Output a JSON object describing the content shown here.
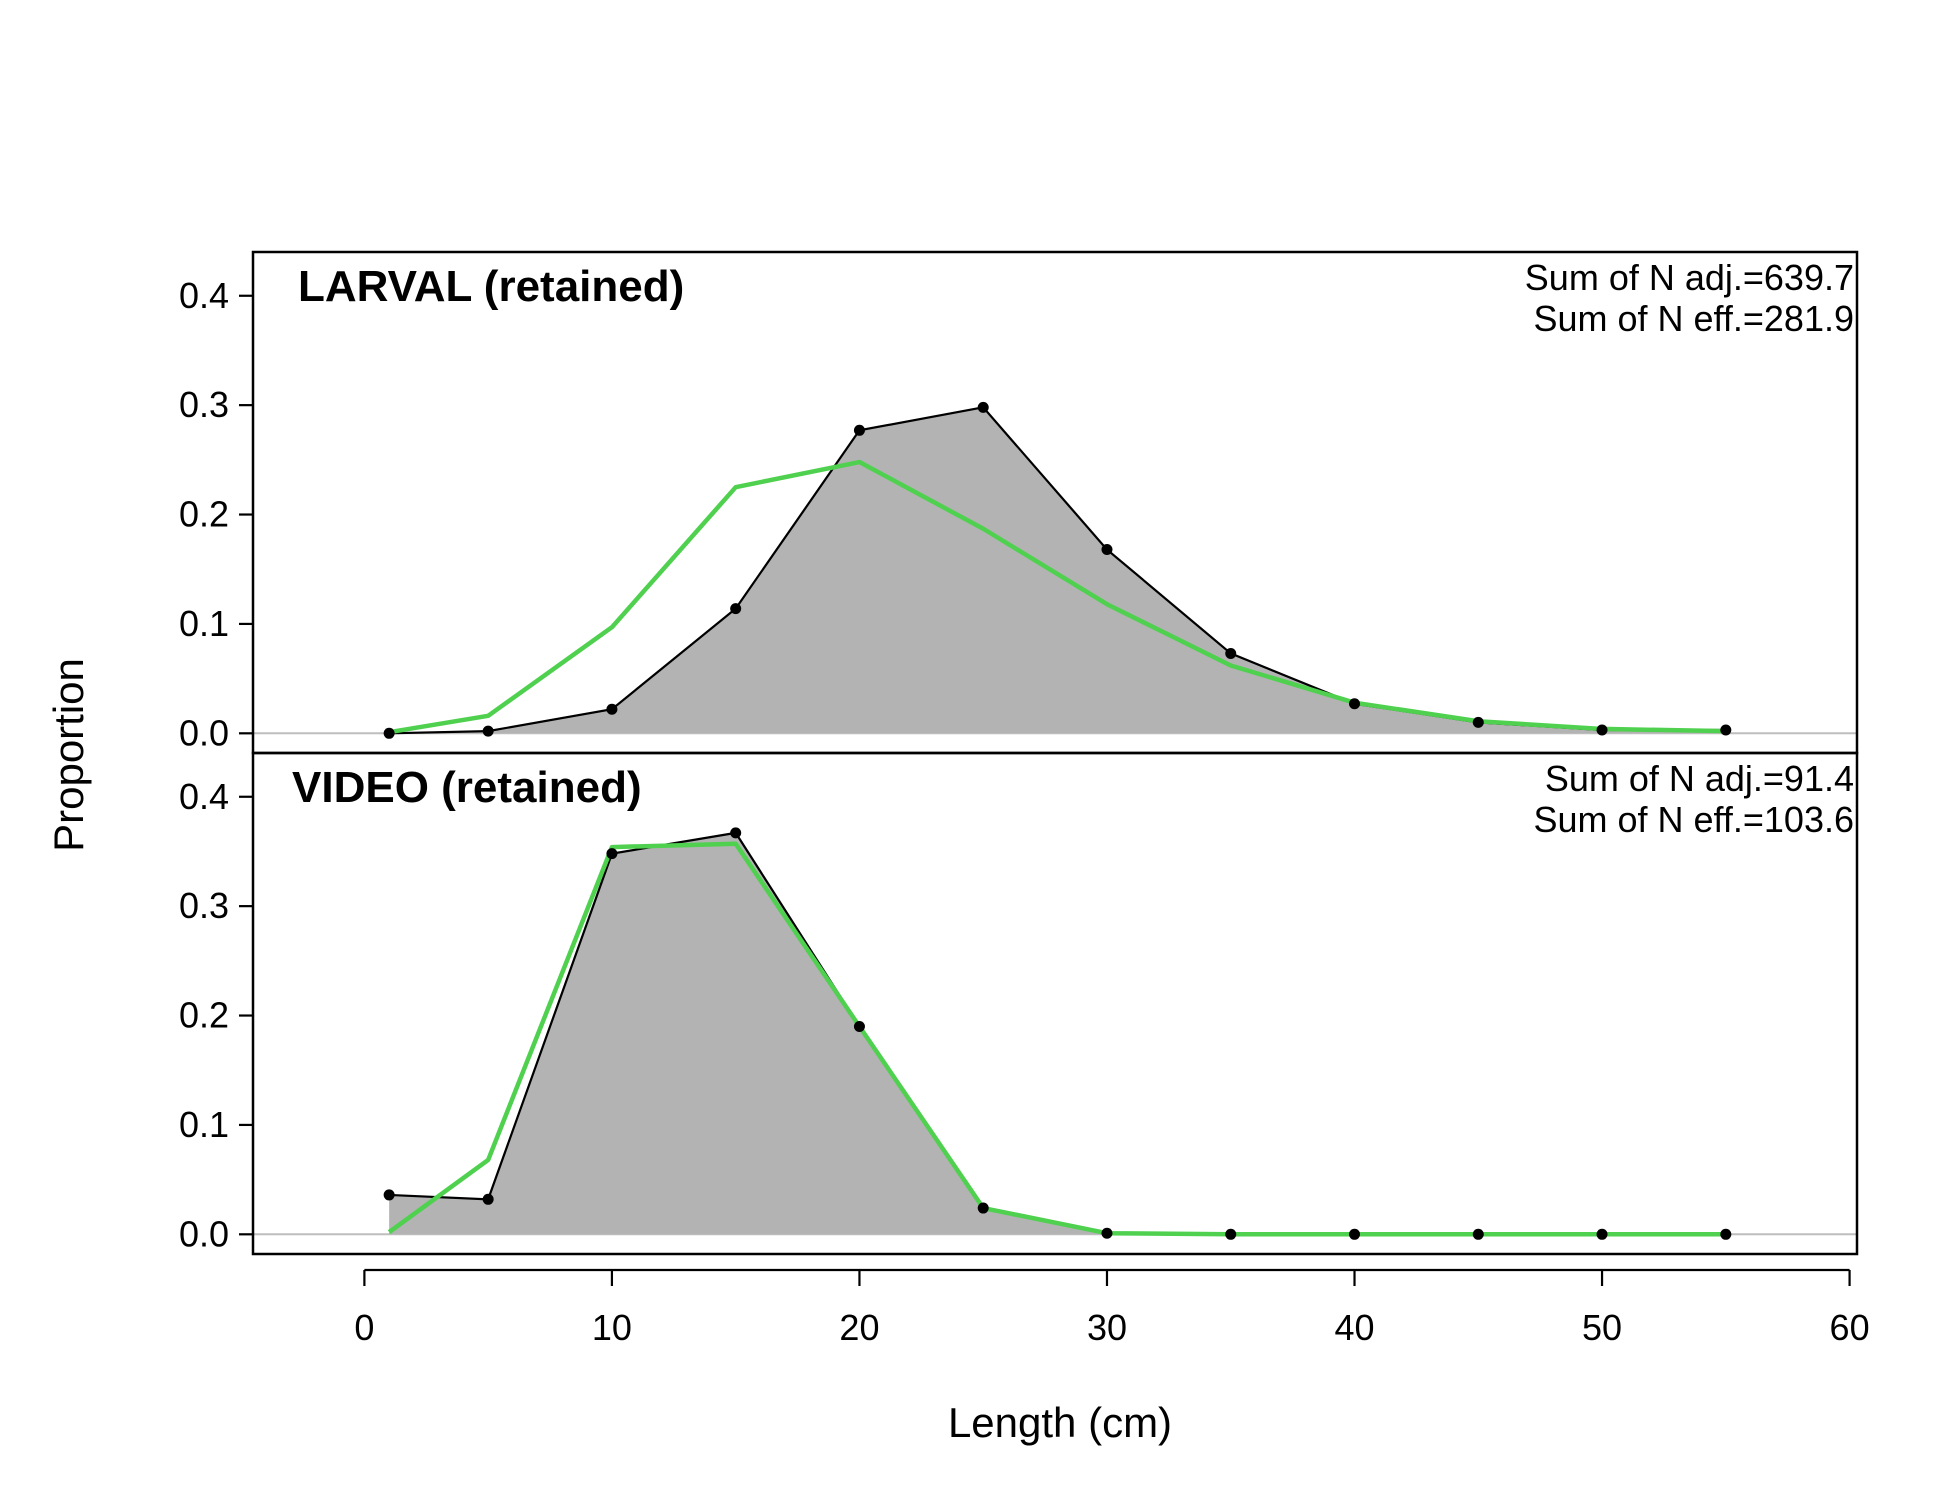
{
  "chart_data": {
    "type": "area",
    "xlabel": "Length (cm)",
    "ylabel": "Proportion",
    "xlim": [
      -4.5,
      60.3
    ],
    "ylim": [
      -0.018,
      0.44
    ],
    "x_ticks": [
      0,
      10,
      20,
      30,
      40,
      50,
      60
    ],
    "y_ticks": [
      0.0,
      0.1,
      0.2,
      0.3,
      0.4
    ],
    "y_tick_labels": [
      "0.0",
      "0.1",
      "0.2",
      "0.3",
      "0.4"
    ],
    "colors": {
      "observed_fill": "#b3b3b3",
      "observed_line": "#000000",
      "expected_line": "#4fd14f",
      "zero_line": "#bebebe"
    },
    "panels": [
      {
        "title": "LARVAL (retained)",
        "annotations": [
          "Sum of N adj.=639.7",
          "Sum of N eff.=281.9"
        ],
        "x": [
          1,
          5,
          10,
          15,
          20,
          25,
          30,
          35,
          40,
          45,
          50,
          55
        ],
        "series": [
          {
            "kind": "observed",
            "values": [
              0.0,
              0.002,
              0.022,
              0.114,
              0.277,
              0.298,
              0.168,
              0.073,
              0.027,
              0.01,
              0.003,
              0.003
            ]
          },
          {
            "kind": "expected",
            "values": [
              0.001,
              0.016,
              0.097,
              0.225,
              0.248,
              0.187,
              0.118,
              0.062,
              0.028,
              0.011,
              0.004,
              0.002
            ]
          }
        ]
      },
      {
        "title": "VIDEO (retained)",
        "annotations": [
          "Sum of N adj.=91.4",
          "Sum of N eff.=103.6"
        ],
        "x": [
          1,
          5,
          10,
          15,
          20,
          25,
          30,
          35,
          40,
          45,
          50,
          55
        ],
        "series": [
          {
            "kind": "observed",
            "values": [
              0.036,
              0.032,
              0.348,
              0.367,
              0.19,
              0.024,
              0.001,
              0.0,
              0.0,
              0.0,
              0.0,
              0.0
            ]
          },
          {
            "kind": "expected",
            "values": [
              0.002,
              0.068,
              0.354,
              0.357,
              0.19,
              0.024,
              0.001,
              0.0,
              0.0,
              0.0,
              0.0,
              0.0
            ]
          }
        ]
      }
    ]
  }
}
